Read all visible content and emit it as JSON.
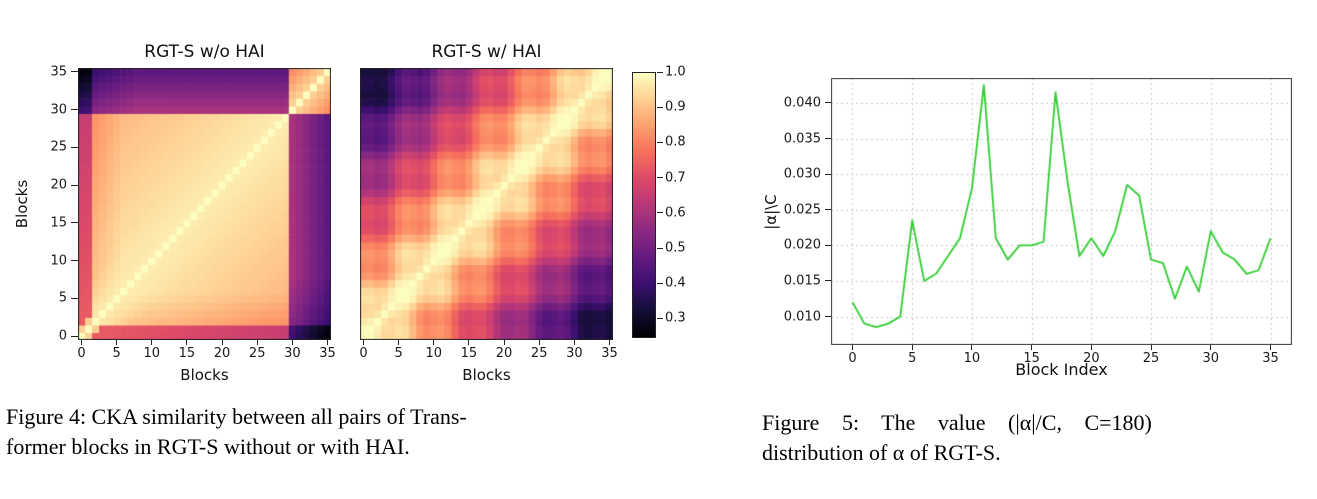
{
  "figure4": {
    "heatmap_wo_title": "RGT-S w/o HAI",
    "heatmap_w_title": "RGT-S w/ HAI",
    "xlabel": "Blocks",
    "ylabel": "Blocks",
    "block_ticks": {
      "values": [
        0,
        5,
        10,
        15,
        20,
        25,
        30,
        35
      ],
      "labels": [
        "0",
        "5",
        "10",
        "15",
        "20",
        "25",
        "30",
        "35"
      ]
    },
    "colorbar": {
      "values": [
        1.0,
        0.9,
        0.8,
        0.7,
        0.6,
        0.5,
        0.4,
        0.3
      ],
      "labels": [
        "1.0",
        "0.9",
        "0.8",
        "0.7",
        "0.6",
        "0.5",
        "0.4",
        "0.3"
      ]
    },
    "caption_line1": "Figure 4: CKA similarity between all pairs of Trans-",
    "caption_line2": "former blocks in RGT-S without or with HAI."
  },
  "figure5": {
    "xlabel": "Block Index",
    "ylabel": "|α|\\C",
    "x_ticks": {
      "values": [
        0,
        5,
        10,
        15,
        20,
        25,
        30,
        35
      ],
      "labels": [
        "0",
        "5",
        "10",
        "15",
        "20",
        "25",
        "30",
        "35"
      ]
    },
    "y_ticks": {
      "values": [
        0.04,
        0.035,
        0.03,
        0.025,
        0.02,
        0.015,
        0.01
      ],
      "labels": [
        "0.040",
        "0.035",
        "0.030",
        "0.025",
        "0.020",
        "0.015",
        "0.010"
      ]
    },
    "caption_line1": "Figure 5: The value (|α|/C, C=180)",
    "caption_line2": "distribution of α of RGT-S."
  },
  "chart_data": [
    {
      "type": "heatmap",
      "title": "RGT-S w/o HAI",
      "xlabel": "Blocks",
      "ylabel": "Blocks",
      "n_blocks": 36,
      "x_ticks": [
        0,
        5,
        10,
        15,
        20,
        25,
        30,
        35
      ],
      "y_ticks": [
        0,
        5,
        10,
        15,
        20,
        25,
        30,
        35
      ],
      "colormap": "magma",
      "vmin": 0.25,
      "vmax": 1.0,
      "colorbar_ticks": [
        1.0,
        0.9,
        0.8,
        0.7,
        0.6,
        0.5,
        0.4,
        0.3
      ],
      "description": "CKA similarity matrix of RGT-S without HAI: blocks 2-29 are mutually highly similar (~0.9-1.0, bright cream region); final blocks 30-35 have low similarity to all earlier blocks (~0.3-0.6, dark bands at top rows and right columns, nearly black vs blocks 0-1) but are similar to each other; blocks 0-1 are only moderately similar (~0.7, pink) to middle blocks.",
      "pattern": {
        "mid_hi": 0.975,
        "mid_decay": 0.0035,
        "late_start": 30,
        "late_self": 0.95,
        "late_self_decay": 0.025,
        "late_vs_mid": 0.6,
        "late_row_decay": 0.028,
        "late_col_decay": 0.01,
        "early_penalty": 0.12,
        "early_vs_mid": 0.74,
        "floor": 0.26
      }
    },
    {
      "type": "heatmap",
      "title": "RGT-S w/ HAI",
      "xlabel": "Blocks",
      "ylabel": "Blocks",
      "n_blocks": 36,
      "x_ticks": [
        0,
        5,
        10,
        15,
        20,
        25,
        30,
        35
      ],
      "y_ticks": [
        0,
        5,
        10,
        15,
        20,
        25,
        30,
        35
      ],
      "colormap": "magma",
      "vmin": 0.25,
      "vmax": 1.0,
      "colorbar_ticks": [
        1.0,
        0.9,
        0.8,
        0.7,
        0.6,
        0.5,
        0.4,
        0.3
      ],
      "description": "CKA similarity matrix of RGT-S with HAI: similarity decays smoothly with block distance (bright diagonal band fading to dark purple ~0.3-0.4 in the far off-diagonal corners), with streaky block-cluster texture, indicating more diverse block representations.",
      "pattern": {
        "decay": 0.021,
        "floor": 0.33,
        "streak_amp": 0.035,
        "streak_freq": 1.1
      }
    },
    {
      "type": "line",
      "title": "",
      "xlabel": "Block Index",
      "ylabel": "|α|\\C",
      "line_color": "#32CD32",
      "grid": true,
      "legend": false,
      "xlim": [
        -1.8,
        36.8
      ],
      "ylim": [
        0.006,
        0.0435
      ],
      "x_ticks": [
        0,
        5,
        10,
        15,
        20,
        25,
        30,
        35
      ],
      "y_ticks": [
        0.01,
        0.015,
        0.02,
        0.025,
        0.03,
        0.035,
        0.04
      ],
      "x": [
        0,
        1,
        2,
        3,
        4,
        5,
        6,
        7,
        8,
        9,
        10,
        11,
        12,
        13,
        14,
        15,
        16,
        17,
        18,
        19,
        20,
        21,
        22,
        23,
        24,
        25,
        26,
        27,
        28,
        29,
        30,
        31,
        32,
        33,
        34,
        35
      ],
      "values": [
        0.012,
        0.009,
        0.0085,
        0.009,
        0.01,
        0.0235,
        0.015,
        0.016,
        0.0185,
        0.021,
        0.028,
        0.0425,
        0.021,
        0.018,
        0.02,
        0.02,
        0.0205,
        0.0415,
        0.029,
        0.0185,
        0.021,
        0.0185,
        0.022,
        0.0285,
        0.027,
        0.018,
        0.0175,
        0.0125,
        0.017,
        0.0135,
        0.022,
        0.019,
        0.018,
        0.016,
        0.0165,
        0.021
      ]
    }
  ]
}
